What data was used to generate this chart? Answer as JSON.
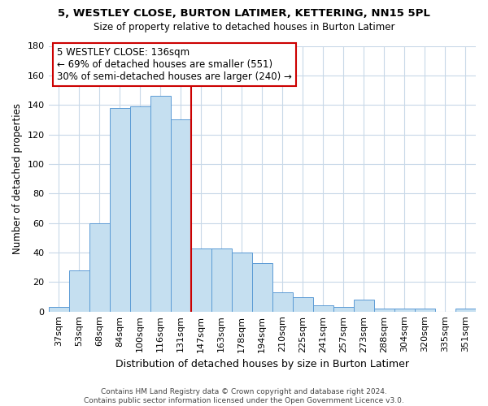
{
  "title1": "5, WESTLEY CLOSE, BURTON LATIMER, KETTERING, NN15 5PL",
  "title2": "Size of property relative to detached houses in Burton Latimer",
  "xlabel": "Distribution of detached houses by size in Burton Latimer",
  "ylabel": "Number of detached properties",
  "bar_labels": [
    "37sqm",
    "53sqm",
    "68sqm",
    "84sqm",
    "100sqm",
    "116sqm",
    "131sqm",
    "147sqm",
    "163sqm",
    "178sqm",
    "194sqm",
    "210sqm",
    "225sqm",
    "241sqm",
    "257sqm",
    "273sqm",
    "288sqm",
    "304sqm",
    "320sqm",
    "335sqm",
    "351sqm"
  ],
  "bar_values": [
    3,
    28,
    60,
    138,
    139,
    146,
    130,
    43,
    43,
    40,
    33,
    13,
    10,
    4,
    3,
    8,
    2,
    2,
    2,
    0,
    2
  ],
  "bar_color": "#c5dff0",
  "bar_edge_color": "#5b9bd5",
  "highlight_line_index": 6,
  "highlight_line_color": "#cc0000",
  "annotation_text": "5 WESTLEY CLOSE: 136sqm\n← 69% of detached houses are smaller (551)\n30% of semi-detached houses are larger (240) →",
  "annotation_box_color": "#ffffff",
  "annotation_box_edge": "#cc0000",
  "ylim": [
    0,
    180
  ],
  "yticks": [
    0,
    20,
    40,
    60,
    80,
    100,
    120,
    140,
    160,
    180
  ],
  "footer1": "Contains HM Land Registry data © Crown copyright and database right 2024.",
  "footer2": "Contains public sector information licensed under the Open Government Licence v3.0.",
  "bg_color": "#ffffff",
  "grid_color": "#c8d8e8"
}
